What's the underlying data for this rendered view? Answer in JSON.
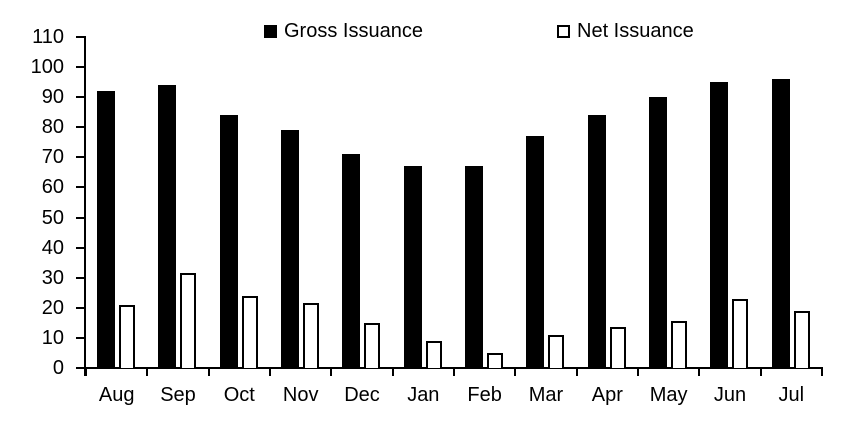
{
  "chart_data": {
    "type": "bar",
    "title": "",
    "xlabel": "",
    "ylabel": "",
    "categories": [
      "Aug",
      "Sep",
      "Oct",
      "Nov",
      "Dec",
      "Jan",
      "Feb",
      "Mar",
      "Apr",
      "May",
      "Jun",
      "Jul"
    ],
    "series": [
      {
        "name": "Gross Issuance",
        "style": "solid",
        "fill_color": "#000000",
        "border_color": "#000000",
        "values": [
          92,
          94,
          84,
          79,
          71,
          67,
          67,
          77,
          84,
          90,
          95,
          96
        ]
      },
      {
        "name": "Net Issuance",
        "style": "outline",
        "fill_color": "#ffffff",
        "border_color": "#000000",
        "values": [
          21,
          31.5,
          24,
          21.5,
          15,
          9,
          5,
          11,
          13.5,
          15.5,
          23,
          19
        ]
      }
    ],
    "ylim": [
      0,
      110
    ],
    "yticks": [
      0,
      10,
      20,
      30,
      40,
      50,
      60,
      70,
      80,
      90,
      100,
      110
    ],
    "grid": false,
    "legend_position": "top",
    "axis_color": "#000000",
    "background_color": "#ffffff"
  }
}
